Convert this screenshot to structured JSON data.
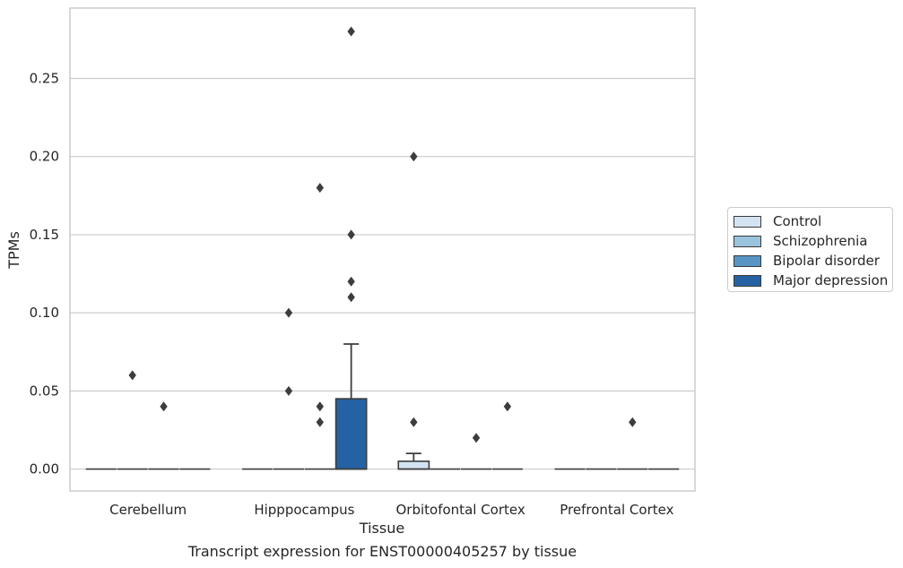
{
  "chart_data": {
    "type": "box",
    "xlabel": "Tissue",
    "ylabel": "TPMs",
    "caption": "Transcript expression for ENST00000405257 by tissue",
    "categories": [
      "Cerebellum",
      "Hipppocampus",
      "Orbitofontal Cortex",
      "Prefrontal Cortex"
    ],
    "ylim": [
      -0.014,
      0.295
    ],
    "yticks": [
      0.0,
      0.05,
      0.1,
      0.15,
      0.2,
      0.25
    ],
    "ytick_labels": [
      "0.00",
      "0.05",
      "0.10",
      "0.15",
      "0.20",
      "0.25"
    ],
    "grid": "horizontal",
    "legend_position": "right",
    "series": [
      {
        "name": "Control",
        "color": "#d3e3f1",
        "boxes": [
          {
            "category": "Cerebellum",
            "whislo": 0,
            "q1": 0,
            "med": 0,
            "q3": 0,
            "whishi": 0,
            "fliers": []
          },
          {
            "category": "Hipppocampus",
            "whislo": 0,
            "q1": 0,
            "med": 0,
            "q3": 0,
            "whishi": 0,
            "fliers": []
          },
          {
            "category": "Orbitofontal Cortex",
            "whislo": 0,
            "q1": 0,
            "med": 0,
            "q3": 0.005,
            "whishi": 0.01,
            "fliers": [
              0.2,
              0.03
            ]
          },
          {
            "category": "Prefrontal Cortex",
            "whislo": 0,
            "q1": 0,
            "med": 0,
            "q3": 0,
            "whishi": 0,
            "fliers": []
          }
        ]
      },
      {
        "name": "Schizophrenia",
        "color": "#9ac3de",
        "boxes": [
          {
            "category": "Cerebellum",
            "whislo": 0,
            "q1": 0,
            "med": 0,
            "q3": 0,
            "whishi": 0,
            "fliers": [
              0.06
            ]
          },
          {
            "category": "Hipppocampus",
            "whislo": 0,
            "q1": 0,
            "med": 0,
            "q3": 0,
            "whishi": 0,
            "fliers": [
              0.1,
              0.05
            ]
          },
          {
            "category": "Orbitofontal Cortex",
            "whislo": 0,
            "q1": 0,
            "med": 0,
            "q3": 0,
            "whishi": 0,
            "fliers": []
          },
          {
            "category": "Prefrontal Cortex",
            "whislo": 0,
            "q1": 0,
            "med": 0,
            "q3": 0,
            "whishi": 0,
            "fliers": []
          }
        ]
      },
      {
        "name": "Bipolar disorder",
        "color": "#5795c6",
        "boxes": [
          {
            "category": "Cerebellum",
            "whislo": 0,
            "q1": 0,
            "med": 0,
            "q3": 0,
            "whishi": 0,
            "fliers": [
              0.04
            ]
          },
          {
            "category": "Hipppocampus",
            "whislo": 0,
            "q1": 0,
            "med": 0,
            "q3": 0,
            "whishi": 0,
            "fliers": [
              0.18,
              0.04,
              0.03
            ]
          },
          {
            "category": "Orbitofontal Cortex",
            "whislo": 0,
            "q1": 0,
            "med": 0,
            "q3": 0,
            "whishi": 0,
            "fliers": [
              0.02
            ]
          },
          {
            "category": "Prefrontal Cortex",
            "whislo": 0,
            "q1": 0,
            "med": 0,
            "q3": 0,
            "whishi": 0,
            "fliers": [
              0.03
            ]
          }
        ]
      },
      {
        "name": "Major depression",
        "color": "#2562a3",
        "boxes": [
          {
            "category": "Cerebellum",
            "whislo": 0,
            "q1": 0,
            "med": 0,
            "q3": 0,
            "whishi": 0,
            "fliers": []
          },
          {
            "category": "Hipppocampus",
            "whislo": 0,
            "q1": 0,
            "med": 0,
            "q3": 0.045,
            "whishi": 0.08,
            "fliers": [
              0.28,
              0.15,
              0.11,
              0.12
            ]
          },
          {
            "category": "Orbitofontal Cortex",
            "whislo": 0,
            "q1": 0,
            "med": 0,
            "q3": 0,
            "whishi": 0,
            "fliers": [
              0.04
            ]
          },
          {
            "category": "Prefrontal Cortex",
            "whislo": 0,
            "q1": 0,
            "med": 0,
            "q3": 0,
            "whishi": 0,
            "fliers": []
          }
        ]
      }
    ]
  }
}
